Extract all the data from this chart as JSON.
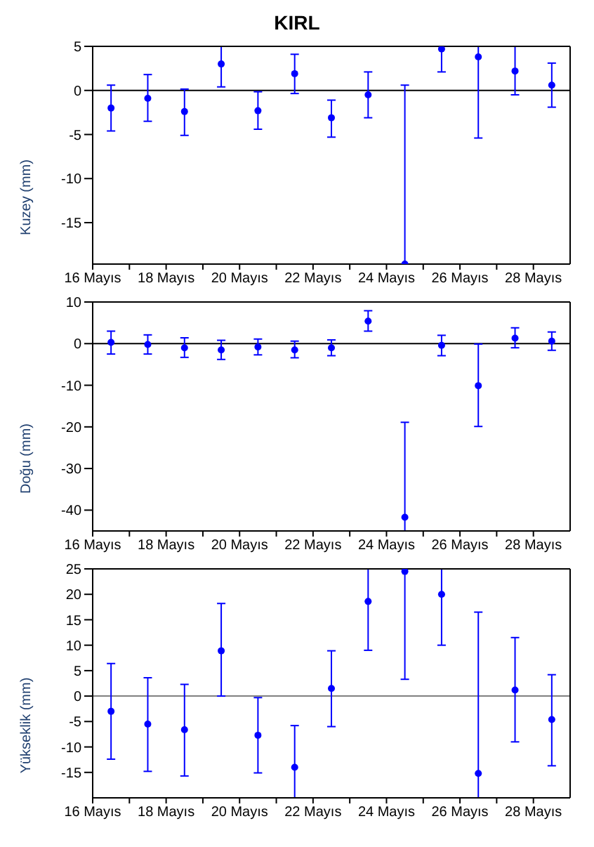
{
  "chart_data": [
    {
      "type": "scatter",
      "title": "KIRL",
      "ylabel": "Kuzey (mm)",
      "marker": "circle",
      "color": "#0000ff",
      "x": [
        "--05-16T12:00",
        "--05-17T12:00",
        "--05-18T12:00",
        "--05-19T12:00",
        "--05-20T12:00",
        "--05-21T12:00",
        "--05-22T12:00",
        "--05-23T12:00",
        "--05-24T12:00",
        "--05-25T12:00",
        "--05-26T12:00",
        "--05-27T12:00",
        "--05-28T12:00"
      ],
      "values": [
        -2.0,
        -0.9,
        -2.4,
        3.0,
        -2.3,
        1.9,
        -3.1,
        -0.5,
        -19.7,
        4.7,
        3.8,
        2.2,
        0.6
      ],
      "errors": [
        [
          -4.6,
          0.6
        ],
        [
          -3.5,
          1.8
        ],
        [
          -5.1,
          0.15
        ],
        [
          0.4,
          5
        ],
        [
          -4.4,
          -0.15
        ],
        [
          -0.35,
          4.1
        ],
        [
          -5.3,
          -1.1
        ],
        [
          -3.1,
          2.1
        ],
        [
          -19.7,
          0.6
        ],
        [
          2.1,
          5
        ],
        [
          -5.4,
          5
        ],
        [
          -0.5,
          5
        ],
        [
          -1.9,
          3.1
        ]
      ],
      "xlim": [
        "--05-16",
        "--05-29"
      ],
      "xticks": [
        {
          "value": "--05-16",
          "label": "16 Mayıs"
        },
        {
          "value": "--05-17",
          "label": null
        },
        {
          "value": "--05-18",
          "label": "18 Mayıs"
        },
        {
          "value": "--05-19",
          "label": null
        },
        {
          "value": "--05-20",
          "label": "20 Mayıs"
        },
        {
          "value": "--05-21",
          "label": null
        },
        {
          "value": "--05-22",
          "label": "22 Mayıs"
        },
        {
          "value": "--05-23",
          "label": null
        },
        {
          "value": "--05-24",
          "label": "24 Mayıs"
        },
        {
          "value": "--05-25",
          "label": null
        },
        {
          "value": "--05-26",
          "label": "26 Mayıs"
        },
        {
          "value": "--05-27",
          "label": null
        },
        {
          "value": "--05-28",
          "label": "28 Mayıs"
        }
      ],
      "ylim": [
        -19.7,
        5
      ],
      "yticks": [
        -15,
        -10,
        -5,
        0,
        5
      ],
      "ref_lines": [
        {
          "axis": "y",
          "value": 0,
          "color": "#000000"
        }
      ]
    },
    {
      "type": "scatter",
      "ylabel": "Doğu (mm)",
      "marker": "circle",
      "color": "#0000ff",
      "x": [
        "--05-16T12:00",
        "--05-17T12:00",
        "--05-18T12:00",
        "--05-19T12:00",
        "--05-20T12:00",
        "--05-21T12:00",
        "--05-22T12:00",
        "--05-23T12:00",
        "--05-24T12:00",
        "--05-25T12:00",
        "--05-26T12:00",
        "--05-27T12:00",
        "--05-28T12:00"
      ],
      "values": [
        0.3,
        -0.2,
        -1.0,
        -1.5,
        -0.8,
        -1.5,
        -1.0,
        5.4,
        -41.7,
        -0.4,
        -10.1,
        1.3,
        0.6
      ],
      "errors": [
        [
          -2.5,
          3.0
        ],
        [
          -2.5,
          2.1
        ],
        [
          -3.3,
          1.4
        ],
        [
          -3.8,
          0.8
        ],
        [
          -2.7,
          1.1
        ],
        [
          -3.4,
          0.6
        ],
        [
          -2.9,
          0.9
        ],
        [
          3.0,
          7.9
        ],
        [
          -45,
          -18.9
        ],
        [
          -2.9,
          2.0
        ],
        [
          -19.9,
          -0.1
        ],
        [
          -1.0,
          3.8
        ],
        [
          -1.6,
          2.8
        ]
      ],
      "xlim": [
        "--05-16",
        "--05-29"
      ],
      "xticks": [
        {
          "value": "--05-16",
          "label": "16 Mayıs"
        },
        {
          "value": "--05-17",
          "label": null
        },
        {
          "value": "--05-18",
          "label": "18 Mayıs"
        },
        {
          "value": "--05-19",
          "label": null
        },
        {
          "value": "--05-20",
          "label": "20 Mayıs"
        },
        {
          "value": "--05-21",
          "label": null
        },
        {
          "value": "--05-22",
          "label": "22 Mayıs"
        },
        {
          "value": "--05-23",
          "label": null
        },
        {
          "value": "--05-24",
          "label": "24 Mayıs"
        },
        {
          "value": "--05-25",
          "label": null
        },
        {
          "value": "--05-26",
          "label": "26 Mayıs"
        },
        {
          "value": "--05-27",
          "label": null
        },
        {
          "value": "--05-28",
          "label": "28 Mayıs"
        }
      ],
      "ylim": [
        -45,
        10
      ],
      "yticks": [
        -40,
        -30,
        -20,
        -10,
        0,
        10
      ],
      "ref_lines": [
        {
          "axis": "y",
          "value": 0,
          "color": "#000000"
        }
      ]
    },
    {
      "type": "scatter",
      "ylabel": "Yükseklik (mm)",
      "marker": "circle",
      "color": "#0000ff",
      "x": [
        "--05-16T12:00",
        "--05-17T12:00",
        "--05-18T12:00",
        "--05-19T12:00",
        "--05-20T12:00",
        "--05-21T12:00",
        "--05-22T12:00",
        "--05-23T12:00",
        "--05-24T12:00",
        "--05-25T12:00",
        "--05-26T12:00",
        "--05-27T12:00",
        "--05-28T12:00"
      ],
      "values": [
        -3.0,
        -5.5,
        -6.6,
        8.9,
        -7.7,
        -14.0,
        1.5,
        18.6,
        24.5,
        20.0,
        -15.2,
        1.2,
        -4.6
      ],
      "errors": [
        [
          -12.4,
          6.4
        ],
        [
          -14.8,
          3.6
        ],
        [
          -15.7,
          2.3
        ],
        [
          0,
          18.2
        ],
        [
          -15.1,
          -0.3
        ],
        [
          -20,
          -5.8
        ],
        [
          -6.0,
          8.9
        ],
        [
          9.0,
          25
        ],
        [
          3.3,
          25
        ],
        [
          10.0,
          25
        ],
        [
          -20,
          16.5
        ],
        [
          -9.0,
          11.5
        ],
        [
          -13.7,
          4.2
        ]
      ],
      "xlim": [
        "--05-16",
        "--05-29"
      ],
      "xticks": [
        {
          "value": "--05-16",
          "label": "16 Mayıs"
        },
        {
          "value": "--05-17",
          "label": null
        },
        {
          "value": "--05-18",
          "label": "18 Mayıs"
        },
        {
          "value": "--05-19",
          "label": null
        },
        {
          "value": "--05-20",
          "label": "20 Mayıs"
        },
        {
          "value": "--05-21",
          "label": null
        },
        {
          "value": "--05-22",
          "label": "22 Mayıs"
        },
        {
          "value": "--05-23",
          "label": null
        },
        {
          "value": "--05-24",
          "label": "24 Mayıs"
        },
        {
          "value": "--05-25",
          "label": null
        },
        {
          "value": "--05-26",
          "label": "26 Mayıs"
        },
        {
          "value": "--05-27",
          "label": null
        },
        {
          "value": "--05-28",
          "label": "28 Mayıs"
        }
      ],
      "ylim": [
        -20,
        25
      ],
      "yticks": [
        -15,
        -10,
        -5,
        0,
        5,
        10,
        15,
        20,
        25
      ],
      "ref_lines": [
        {
          "axis": "y",
          "value": 0,
          "color": "#808080"
        }
      ]
    }
  ]
}
